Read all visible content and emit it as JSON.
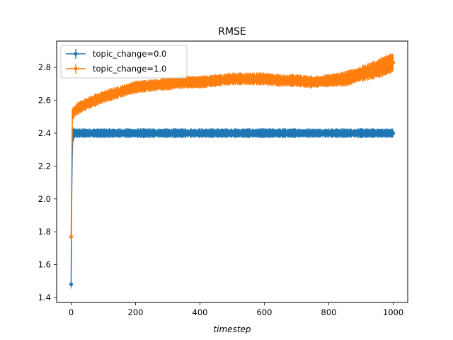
{
  "chart_data": {
    "type": "line",
    "title": "RMSE",
    "xlabel": "timestep",
    "ylabel": "",
    "xlim": [
      -45,
      1045
    ],
    "ylim": [
      1.37,
      2.96
    ],
    "xticks": [
      0,
      200,
      400,
      600,
      800,
      1000
    ],
    "yticks": [
      1.4,
      1.6,
      1.8,
      2.0,
      2.2,
      2.4,
      2.6,
      2.8
    ],
    "xtick_labels": [
      "0",
      "200",
      "400",
      "600",
      "800",
      "1000"
    ],
    "ytick_labels": [
      "1.4",
      "1.6",
      "1.8",
      "2.0",
      "2.2",
      "2.4",
      "2.6",
      "2.8"
    ],
    "grid": false,
    "legend_position": "upper-left",
    "error_bars": true,
    "series": [
      {
        "name": "topic_change=0.0",
        "color": "#1f77b4",
        "x": [
          0,
          3,
          6,
          10,
          20,
          50,
          100,
          200,
          300,
          400,
          500,
          600,
          700,
          800,
          900,
          1000
        ],
        "y": [
          1.48,
          2.33,
          2.39,
          2.4,
          2.4,
          2.4,
          2.4,
          2.4,
          2.4,
          2.4,
          2.4,
          2.4,
          2.4,
          2.4,
          2.4,
          2.4
        ],
        "err": [
          0.03,
          0.1,
          0.05,
          0.03,
          0.03,
          0.03,
          0.03,
          0.03,
          0.03,
          0.03,
          0.03,
          0.03,
          0.03,
          0.03,
          0.03,
          0.03
        ]
      },
      {
        "name": "topic_change=1.0",
        "color": "#ff7f0e",
        "x": [
          0,
          3,
          6,
          10,
          20,
          50,
          100,
          150,
          200,
          250,
          300,
          350,
          400,
          450,
          500,
          550,
          600,
          650,
          700,
          750,
          800,
          850,
          900,
          950,
          1000
        ],
        "y": [
          1.77,
          2.51,
          2.52,
          2.53,
          2.55,
          2.58,
          2.62,
          2.65,
          2.68,
          2.69,
          2.7,
          2.71,
          2.71,
          2.72,
          2.73,
          2.73,
          2.73,
          2.72,
          2.72,
          2.71,
          2.72,
          2.73,
          2.76,
          2.79,
          2.83
        ],
        "err": [
          0.03,
          0.04,
          0.04,
          0.04,
          0.04,
          0.04,
          0.04,
          0.04,
          0.04,
          0.04,
          0.04,
          0.04,
          0.04,
          0.04,
          0.04,
          0.04,
          0.04,
          0.04,
          0.04,
          0.04,
          0.04,
          0.05,
          0.05,
          0.06,
          0.07
        ]
      }
    ]
  }
}
